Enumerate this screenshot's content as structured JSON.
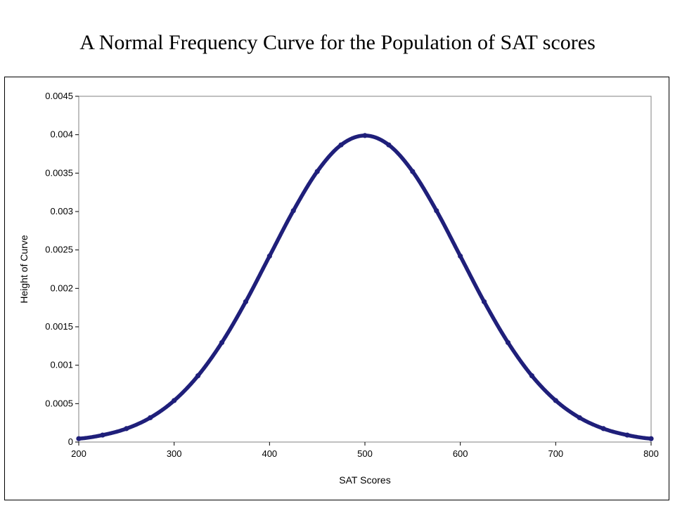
{
  "slide": {
    "title": "A Normal Frequency Curve for the Population of SAT scores"
  },
  "chart_data": {
    "type": "line",
    "title": "",
    "xlabel": "SAT Scores",
    "ylabel": "Height of Curve",
    "xlim": [
      200,
      800
    ],
    "ylim": [
      0,
      0.0045
    ],
    "x_ticks": [
      200,
      300,
      400,
      500,
      600,
      700,
      800
    ],
    "y_ticks": [
      0,
      0.0005,
      0.001,
      0.0015,
      0.002,
      0.0025,
      0.003,
      0.0035,
      0.004,
      0.0045
    ],
    "x_tick_labels": [
      "200",
      "300",
      "400",
      "500",
      "600",
      "700",
      "800"
    ],
    "y_tick_labels": [
      "0",
      "0.0005",
      "0.001",
      "0.0015",
      "0.002",
      "0.0025",
      "0.003",
      "0.0035",
      "0.004",
      "0.0045"
    ],
    "grid": false,
    "legend": "none",
    "series_color": "#1F1F7A",
    "series": [
      {
        "x": [
          200,
          225,
          250,
          275,
          300,
          325,
          350,
          375,
          400,
          425,
          450,
          475,
          500,
          525,
          550,
          575,
          600,
          625,
          650,
          675,
          700,
          725,
          750,
          775,
          800
        ],
        "values": [
          4.4e-05,
          9.1e-05,
          0.000175,
          0.000317,
          0.00054,
          0.000863,
          0.001295,
          0.001826,
          0.00242,
          0.003011,
          0.003521,
          0.003867,
          0.003989,
          0.003867,
          0.003521,
          0.003011,
          0.00242,
          0.001826,
          0.001295,
          0.000863,
          0.00054,
          0.000317,
          0.000175,
          9.1e-05,
          4.4e-05
        ]
      }
    ]
  }
}
